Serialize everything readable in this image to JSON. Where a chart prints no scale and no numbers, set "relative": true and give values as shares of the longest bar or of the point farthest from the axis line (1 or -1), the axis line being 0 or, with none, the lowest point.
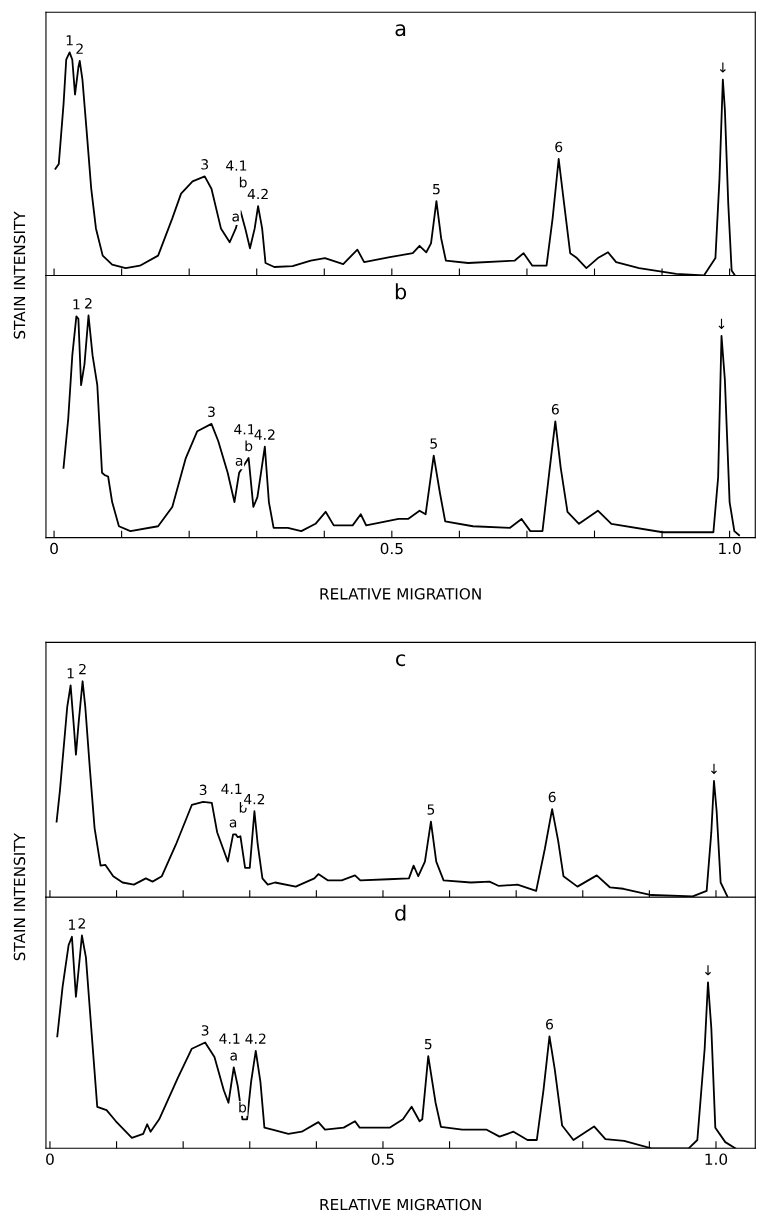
{
  "chart_data": [
    {
      "type": "line",
      "title": "a",
      "ylabel": "STAIN INTENSITY",
      "relative": true,
      "xlim": [
        -0.012,
        1.038
      ],
      "xticks": [
        {
          "value": 0,
          "label": null
        },
        {
          "value": 0.1,
          "label": null
        },
        {
          "value": 0.2,
          "label": null
        },
        {
          "value": 0.3,
          "label": null
        },
        {
          "value": 0.4,
          "label": null
        },
        {
          "value": 0.5,
          "label": null
        },
        {
          "value": 0.6,
          "label": null
        },
        {
          "value": 0.7,
          "label": null
        },
        {
          "value": 0.8,
          "label": null
        },
        {
          "value": 0.9,
          "label": null
        },
        {
          "value": 1.0,
          "label": null
        }
      ],
      "tick_labels": false,
      "series": [
        {
          "color": "#000000",
          "x": [
            0.002,
            0.007,
            0.014,
            0.018,
            0.023,
            0.027,
            0.031,
            0.036,
            0.038,
            0.042,
            0.048,
            0.055,
            0.062,
            0.072,
            0.086,
            0.106,
            0.127,
            0.154,
            0.175,
            0.188,
            0.205,
            0.223,
            0.233,
            0.247,
            0.26,
            0.269,
            0.276,
            0.283,
            0.29,
            0.297,
            0.302,
            0.308,
            0.313,
            0.326,
            0.353,
            0.38,
            0.401,
            0.428,
            0.449,
            0.459,
            0.497,
            0.531,
            0.541,
            0.551,
            0.558,
            0.566,
            0.573,
            0.58,
            0.613,
            0.682,
            0.695,
            0.708,
            0.729,
            0.738,
            0.747,
            0.755,
            0.764,
            0.774,
            0.788,
            0.805,
            0.82,
            0.832,
            0.866,
            0.921,
            0.962,
            0.979,
            0.985,
            0.99,
            0.993,
            0.998,
            1.003,
            1.008
          ],
          "values": [
            0.478,
            0.5,
            0.767,
            0.967,
            1.0,
            0.967,
            0.811,
            0.933,
            0.962,
            0.878,
            0.656,
            0.389,
            0.211,
            0.089,
            0.049,
            0.033,
            0.044,
            0.089,
            0.256,
            0.367,
            0.422,
            0.444,
            0.389,
            0.211,
            0.149,
            0.211,
            0.289,
            0.211,
            0.122,
            0.211,
            0.311,
            0.211,
            0.056,
            0.038,
            0.042,
            0.067,
            0.078,
            0.051,
            0.116,
            0.06,
            0.082,
            0.1,
            0.133,
            0.104,
            0.144,
            0.333,
            0.167,
            0.067,
            0.056,
            0.067,
            0.1,
            0.044,
            0.044,
            0.256,
            0.522,
            0.322,
            0.1,
            0.078,
            0.033,
            0.078,
            0.104,
            0.06,
            0.033,
            0.007,
            0.0,
            0.078,
            0.433,
            0.878,
            0.744,
            0.322,
            0.022,
            0.0
          ]
        }
      ],
      "annotations": [
        {
          "text": "1",
          "x": 0.023,
          "y": 1.0
        },
        {
          "text": "2",
          "x": 0.038,
          "y": 0.962
        },
        {
          "text": "3",
          "x": 0.223,
          "y": 0.444
        },
        {
          "text": "a",
          "x": 0.269,
          "y": 0.211
        },
        {
          "text": "b",
          "x": 0.276,
          "y": 0.289
        },
        {
          "text": "4.1",
          "x": 0.276,
          "y": 0.289
        },
        {
          "text": "4.2",
          "x": 0.302,
          "y": 0.311
        },
        {
          "text": "5",
          "x": 0.566,
          "y": 0.333
        },
        {
          "text": "6",
          "x": 0.747,
          "y": 0.522
        },
        {
          "text": "↓",
          "x": 0.99,
          "y": 0.878
        }
      ]
    },
    {
      "type": "line",
      "title": "b",
      "xlabel": "RELATIVE MIGRATION",
      "relative": true,
      "xlim": [
        -0.012,
        1.038
      ],
      "xticks": [
        0,
        {
          "value": 0.1,
          "label": null
        },
        {
          "value": 0.2,
          "label": null
        },
        {
          "value": 0.3,
          "label": null
        },
        {
          "value": 0.4,
          "label": null
        },
        0.5,
        {
          "value": 0.6,
          "label": null
        },
        {
          "value": 0.7,
          "label": null
        },
        {
          "value": 0.8,
          "label": null
        },
        {
          "value": 0.9,
          "label": null
        },
        {
          "value": 1.0,
          "label": "1.0"
        }
      ],
      "tick_labels": "x",
      "series": [
        {
          "color": "#000000",
          "x": [
            0.014,
            0.021,
            0.027,
            0.033,
            0.036,
            0.04,
            0.045,
            0.051,
            0.057,
            0.064,
            0.071,
            0.075,
            0.08,
            0.086,
            0.096,
            0.113,
            0.154,
            0.175,
            0.195,
            0.212,
            0.233,
            0.243,
            0.257,
            0.267,
            0.274,
            0.288,
            0.295,
            0.301,
            0.312,
            0.318,
            0.325,
            0.346,
            0.366,
            0.387,
            0.402,
            0.414,
            0.442,
            0.454,
            0.462,
            0.51,
            0.524,
            0.541,
            0.55,
            0.562,
            0.571,
            0.579,
            0.62,
            0.675,
            0.692,
            0.705,
            0.723,
            0.733,
            0.742,
            0.75,
            0.76,
            0.777,
            0.805,
            0.825,
            0.901,
            0.976,
            0.983,
            0.988,
            0.993,
            1.0,
            1.007,
            1.014
          ],
          "values": [
            0.314,
            0.536,
            0.82,
            0.996,
            0.985,
            0.686,
            0.78,
            1.0,
            0.82,
            0.686,
            0.292,
            0.281,
            0.275,
            0.16,
            0.051,
            0.029,
            0.051,
            0.138,
            0.358,
            0.479,
            0.512,
            0.435,
            0.292,
            0.16,
            0.292,
            0.358,
            0.138,
            0.182,
            0.409,
            0.16,
            0.044,
            0.044,
            0.029,
            0.062,
            0.116,
            0.055,
            0.055,
            0.105,
            0.055,
            0.084,
            0.084,
            0.121,
            0.105,
            0.369,
            0.204,
            0.073,
            0.051,
            0.044,
            0.084,
            0.029,
            0.029,
            0.292,
            0.523,
            0.314,
            0.116,
            0.062,
            0.121,
            0.062,
            0.024,
            0.024,
            0.27,
            0.908,
            0.71,
            0.16,
            0.029,
            0.011
          ]
        }
      ],
      "annotations": [
        {
          "text": "1",
          "x": 0.033,
          "y": 0.996
        },
        {
          "text": "2",
          "x": 0.051,
          "y": 1.0
        },
        {
          "text": "3",
          "x": 0.233,
          "y": 0.512
        },
        {
          "text": "a",
          "x": 0.274,
          "y": 0.292
        },
        {
          "text": "b",
          "x": 0.288,
          "y": 0.358
        },
        {
          "text": "4.1",
          "x": 0.288,
          "y": 0.358
        },
        {
          "text": "4.2",
          "x": 0.312,
          "y": 0.409
        },
        {
          "text": "5",
          "x": 0.562,
          "y": 0.369
        },
        {
          "text": "6",
          "x": 0.742,
          "y": 0.523
        },
        {
          "text": "↓",
          "x": 0.988,
          "y": 0.908
        }
      ]
    },
    {
      "type": "line",
      "title": "c",
      "ylabel": "STAIN INTENSITY",
      "relative": true,
      "xlim": [
        -0.006,
        1.059
      ],
      "xticks": [
        {
          "value": 0,
          "label": null
        },
        {
          "value": 0.1,
          "label": null
        },
        {
          "value": 0.2,
          "label": null
        },
        {
          "value": 0.3,
          "label": null
        },
        {
          "value": 0.4,
          "label": null
        },
        {
          "value": 0.5,
          "label": null
        },
        {
          "value": 0.6,
          "label": null
        },
        {
          "value": 0.7,
          "label": null
        },
        {
          "value": 0.8,
          "label": null
        },
        {
          "value": 0.9,
          "label": null
        },
        {
          "value": 1.0,
          "label": null
        }
      ],
      "tick_labels": false,
      "series": [
        {
          "color": "#000000",
          "x": [
            0.01,
            0.015,
            0.026,
            0.031,
            0.036,
            0.039,
            0.043,
            0.049,
            0.053,
            0.06,
            0.067,
            0.076,
            0.083,
            0.095,
            0.109,
            0.126,
            0.144,
            0.154,
            0.168,
            0.189,
            0.213,
            0.23,
            0.243,
            0.251,
            0.267,
            0.275,
            0.279,
            0.282,
            0.286,
            0.293,
            0.3,
            0.307,
            0.312,
            0.319,
            0.327,
            0.338,
            0.369,
            0.397,
            0.403,
            0.417,
            0.438,
            0.458,
            0.466,
            0.508,
            0.539,
            0.546,
            0.553,
            0.563,
            0.572,
            0.58,
            0.591,
            0.632,
            0.66,
            0.674,
            0.702,
            0.73,
            0.743,
            0.754,
            0.763,
            0.771,
            0.792,
            0.821,
            0.841,
            0.861,
            0.903,
            0.965,
            0.986,
            0.993,
            0.997,
            1.001,
            1.007,
            1.017
          ],
          "values": [
            0.35,
            0.495,
            0.883,
            0.981,
            0.786,
            0.66,
            0.806,
            1.0,
            0.883,
            0.592,
            0.32,
            0.146,
            0.15,
            0.097,
            0.068,
            0.058,
            0.087,
            0.072,
            0.097,
            0.243,
            0.427,
            0.441,
            0.437,
            0.301,
            0.165,
            0.291,
            0.291,
            0.278,
            0.282,
            0.136,
            0.136,
            0.398,
            0.243,
            0.087,
            0.058,
            0.068,
            0.049,
            0.087,
            0.107,
            0.078,
            0.078,
            0.101,
            0.078,
            0.083,
            0.087,
            0.146,
            0.097,
            0.165,
            0.35,
            0.165,
            0.078,
            0.068,
            0.072,
            0.052,
            0.058,
            0.029,
            0.223,
            0.408,
            0.262,
            0.097,
            0.049,
            0.101,
            0.045,
            0.039,
            0.01,
            0.004,
            0.029,
            0.301,
            0.538,
            0.398,
            0.068,
            0.004
          ]
        }
      ],
      "annotations": [
        {
          "text": "1",
          "x": 0.031,
          "y": 0.981
        },
        {
          "text": "2",
          "x": 0.049,
          "y": 1.0
        },
        {
          "text": "3",
          "x": 0.23,
          "y": 0.441
        },
        {
          "text": "a",
          "x": 0.275,
          "y": 0.291
        },
        {
          "text": "b",
          "x": 0.286,
          "y": 0.282
        },
        {
          "text": "4.1",
          "x": 0.279,
          "y": 0.291
        },
        {
          "text": "4.2",
          "x": 0.307,
          "y": 0.398
        },
        {
          "text": "5",
          "x": 0.572,
          "y": 0.35
        },
        {
          "text": "6",
          "x": 0.754,
          "y": 0.408
        },
        {
          "text": "↓",
          "x": 0.997,
          "y": 0.538
        }
      ]
    },
    {
      "type": "line",
      "title": "d",
      "xlabel": "RELATIVE MIGRATION",
      "relative": true,
      "xlim": [
        -0.006,
        1.059
      ],
      "xticks": [
        0,
        {
          "value": 0.1,
          "label": null
        },
        {
          "value": 0.2,
          "label": null
        },
        {
          "value": 0.3,
          "label": null
        },
        {
          "value": 0.4,
          "label": null
        },
        0.5,
        {
          "value": 0.6,
          "label": null
        },
        {
          "value": 0.7,
          "label": null
        },
        {
          "value": 0.8,
          "label": null
        },
        {
          "value": 0.9,
          "label": null
        },
        {
          "value": 1.0,
          "label": "1.0"
        }
      ],
      "tick_labels": "x",
      "series": [
        {
          "color": "#000000",
          "x": [
            0.011,
            0.019,
            0.028,
            0.033,
            0.039,
            0.043,
            0.048,
            0.054,
            0.062,
            0.071,
            0.085,
            0.099,
            0.123,
            0.14,
            0.146,
            0.151,
            0.164,
            0.192,
            0.213,
            0.233,
            0.247,
            0.261,
            0.268,
            0.276,
            0.282,
            0.289,
            0.296,
            0.302,
            0.309,
            0.316,
            0.322,
            0.334,
            0.358,
            0.378,
            0.403,
            0.413,
            0.441,
            0.458,
            0.465,
            0.51,
            0.53,
            0.543,
            0.555,
            0.559,
            0.568,
            0.579,
            0.587,
            0.619,
            0.655,
            0.675,
            0.696,
            0.717,
            0.731,
            0.741,
            0.75,
            0.758,
            0.769,
            0.786,
            0.817,
            0.834,
            0.862,
            0.903,
            0.959,
            0.972,
            0.983,
            0.988,
            0.993,
            0.999,
            1.014,
            1.029
          ],
          "values": [
            0.526,
            0.76,
            0.955,
            0.994,
            0.712,
            0.838,
            1.0,
            0.897,
            0.565,
            0.195,
            0.179,
            0.127,
            0.049,
            0.068,
            0.113,
            0.078,
            0.136,
            0.331,
            0.468,
            0.497,
            0.429,
            0.273,
            0.214,
            0.38,
            0.292,
            0.136,
            0.136,
            0.312,
            0.458,
            0.312,
            0.097,
            0.088,
            0.068,
            0.078,
            0.123,
            0.088,
            0.097,
            0.127,
            0.097,
            0.097,
            0.136,
            0.195,
            0.127,
            0.136,
            0.433,
            0.214,
            0.101,
            0.088,
            0.088,
            0.055,
            0.078,
            0.039,
            0.039,
            0.273,
            0.526,
            0.37,
            0.107,
            0.039,
            0.103,
            0.043,
            0.035,
            0.0,
            0.0,
            0.039,
            0.468,
            0.78,
            0.565,
            0.097,
            0.029,
            0.0
          ]
        }
      ],
      "annotations": [
        {
          "text": "1",
          "x": 0.033,
          "y": 0.994
        },
        {
          "text": "2",
          "x": 0.048,
          "y": 1.0
        },
        {
          "text": "3",
          "x": 0.233,
          "y": 0.497
        },
        {
          "text": "a",
          "x": 0.276,
          "y": 0.38
        },
        {
          "text": "4.1",
          "x": 0.276,
          "y": 0.38
        },
        {
          "text": "b",
          "x": 0.289,
          "y": 0.136
        },
        {
          "text": "4.2",
          "x": 0.309,
          "y": 0.458
        },
        {
          "text": "5",
          "x": 0.568,
          "y": 0.433
        },
        {
          "text": "6",
          "x": 0.75,
          "y": 0.526
        },
        {
          "text": "↓",
          "x": 0.988,
          "y": 0.78
        }
      ]
    }
  ]
}
